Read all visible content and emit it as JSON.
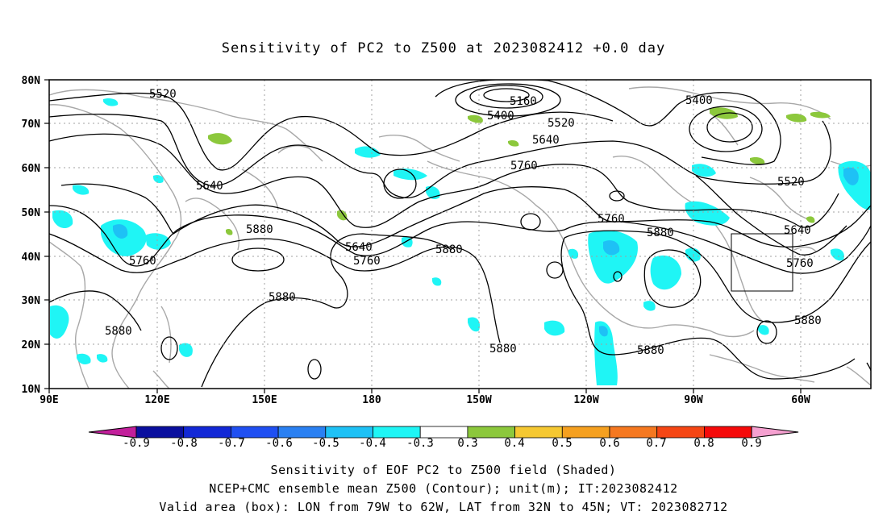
{
  "title": "Sensitivity of PC2 to Z500 at 2023082412 +0.0 day",
  "map": {
    "lon_labels": [
      "90E",
      "120E",
      "150E",
      "180",
      "150W",
      "120W",
      "90W",
      "60W"
    ],
    "lat_labels": [
      "80N",
      "70N",
      "60N",
      "50N",
      "40N",
      "30N",
      "20N",
      "10N"
    ],
    "contour_labels": [
      "5520",
      "5160",
      "5400",
      "5400",
      "5520",
      "5640",
      "5760",
      "5640",
      "5880",
      "5640",
      "5760",
      "5880",
      "5760",
      "5880",
      "5880",
      "5760",
      "5880",
      "5520",
      "5640",
      "5760",
      "5880",
      "5880",
      "5880"
    ],
    "box": {
      "lon_from": "79W",
      "lon_to": "62W",
      "lat_from": "32N",
      "lat_to": "45N"
    }
  },
  "colorbar": {
    "labels": [
      "-0.9",
      "-0.8",
      "-0.7",
      "-0.6",
      "-0.5",
      "-0.4",
      "-0.3",
      "0.3",
      "0.4",
      "0.5",
      "0.6",
      "0.7",
      "0.8",
      "0.9"
    ],
    "colors": [
      "#c21f9b",
      "#0a0f9e",
      "#1228d6",
      "#1f4ff2",
      "#2a80f2",
      "#1ec1f5",
      "#1ff5f5",
      "#ffffff",
      "#8cc83c",
      "#f5c832",
      "#f5a020",
      "#f57820",
      "#f54614",
      "#f50a0a",
      "#f5a0d0"
    ]
  },
  "captions": [
    "Sensitivity of EOF PC2 to Z500 field (Shaded)",
    "NCEP+CMC ensemble mean Z500 (Contour); unit(m); IT:2023082412",
    "Valid area (box): LON from 79W to 62W, LAT from 32N to 45N; VT: 2023082712"
  ]
}
